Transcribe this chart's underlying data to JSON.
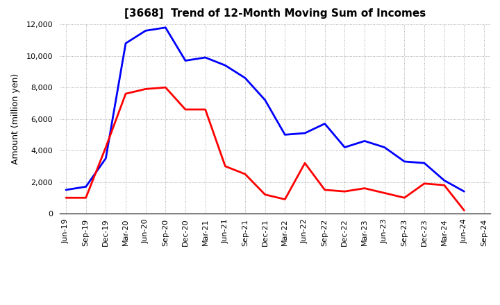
{
  "title": "[3668]  Trend of 12-Month Moving Sum of Incomes",
  "ylabel": "Amount (million yen)",
  "background_color": "#ffffff",
  "plot_bg_color": "#ffffff",
  "grid_color": "#999999",
  "x_labels": [
    "Jun-19",
    "Sep-19",
    "Dec-19",
    "Mar-20",
    "Jun-20",
    "Sep-20",
    "Dec-20",
    "Mar-21",
    "Jun-21",
    "Sep-21",
    "Dec-21",
    "Mar-22",
    "Jun-22",
    "Sep-22",
    "Dec-22",
    "Mar-23",
    "Jun-23",
    "Sep-23",
    "Dec-23",
    "Mar-24",
    "Jun-24",
    "Sep-24"
  ],
  "ordinary_income": [
    1500,
    1700,
    3500,
    10800,
    11600,
    11800,
    9700,
    9900,
    9400,
    8600,
    7200,
    5000,
    5100,
    5700,
    4200,
    4600,
    4200,
    3300,
    3200,
    2100,
    1400,
    null
  ],
  "net_income": [
    1000,
    1000,
    4200,
    7600,
    7900,
    8000,
    6600,
    6600,
    3000,
    2500,
    1200,
    900,
    3200,
    1500,
    1400,
    1600,
    1300,
    1000,
    1900,
    1800,
    200,
    null
  ],
  "ordinary_color": "#0000ff",
  "net_color": "#ff0000",
  "ylim": [
    0,
    12000
  ],
  "yticks": [
    0,
    2000,
    4000,
    6000,
    8000,
    10000,
    12000
  ],
  "line_width": 2.0,
  "figsize": [
    7.2,
    4.4
  ],
  "dpi": 100
}
